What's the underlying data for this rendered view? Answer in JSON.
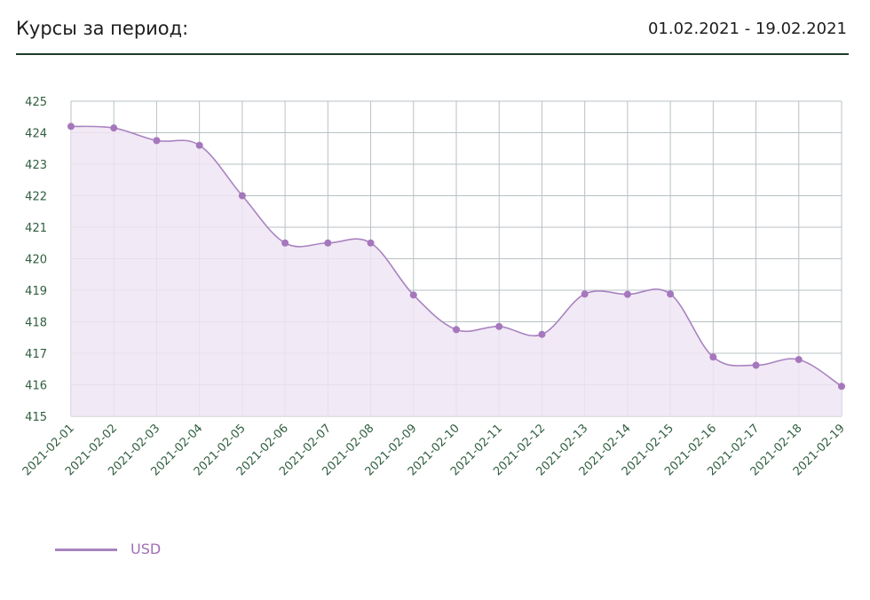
{
  "header": {
    "title": "Курсы за период:",
    "period": "01.02.2021 - 19.02.2021"
  },
  "colors": {
    "line": "#a983c0",
    "point": "#a577bd",
    "fill": "#efe5f3",
    "grid": "#b8c2c4",
    "tick_text": "#2f5e3f",
    "header_rule": "#1f3b2c"
  },
  "chart_data": {
    "type": "area",
    "smooth": true,
    "grid": true,
    "legend_position": "bottom-left",
    "x": [
      "2021-02-01",
      "2021-02-02",
      "2021-02-03",
      "2021-02-04",
      "2021-02-05",
      "2021-02-06",
      "2021-02-07",
      "2021-02-08",
      "2021-02-09",
      "2021-02-10",
      "2021-02-11",
      "2021-02-12",
      "2021-02-13",
      "2021-02-14",
      "2021-02-15",
      "2021-02-16",
      "2021-02-17",
      "2021-02-18",
      "2021-02-19"
    ],
    "ylim": [
      415,
      425
    ],
    "yticks": [
      415,
      416,
      417,
      418,
      419,
      420,
      421,
      422,
      423,
      424,
      425
    ],
    "series": [
      {
        "name": "USD",
        "values": [
          424.2,
          424.15,
          423.75,
          423.6,
          422.0,
          420.5,
          420.5,
          420.5,
          418.85,
          417.75,
          417.85,
          417.6,
          418.88,
          418.87,
          418.88,
          416.88,
          416.62,
          416.8,
          415.95
        ]
      }
    ]
  }
}
